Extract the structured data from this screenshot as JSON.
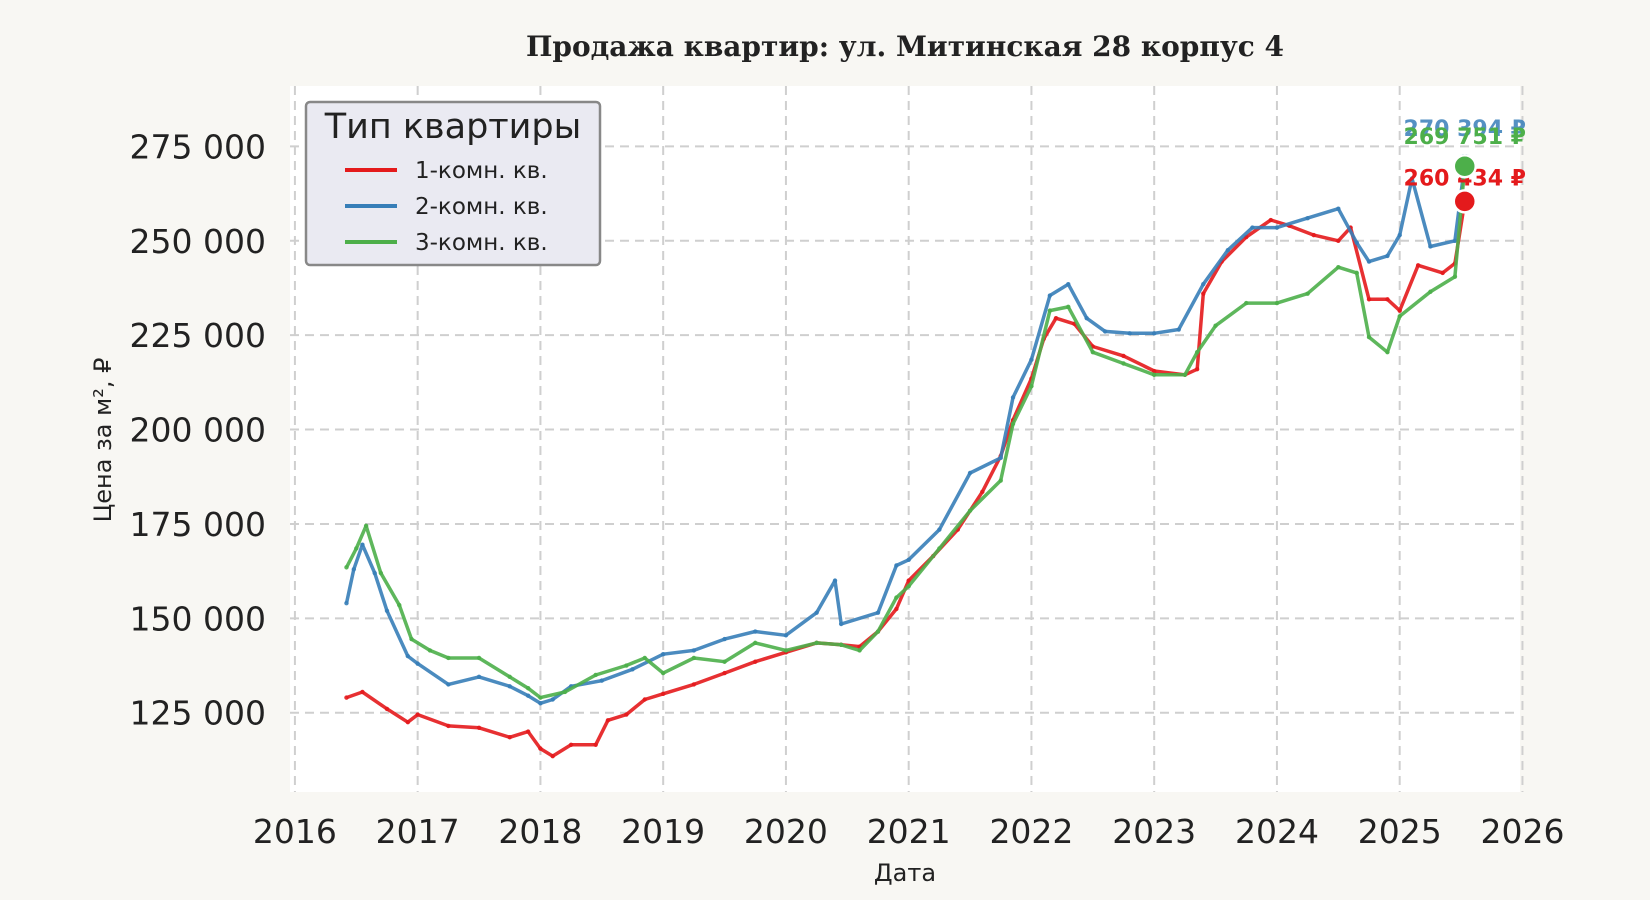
{
  "chart_data": {
    "type": "line",
    "title": "Продажа квартир: ул. Митинская 28 корпус 4",
    "xlabel": "Дата",
    "ylabel": "Цена за м², ₽",
    "xlim": [
      2015.96,
      2025.98
    ],
    "ylim": [
      104000,
      291000
    ],
    "x_ticks": [
      "2016",
      "2017",
      "2018",
      "2019",
      "2020",
      "2021",
      "2022",
      "2023",
      "2024",
      "2025",
      "2026"
    ],
    "y_ticks": [
      "125 000",
      "150 000",
      "175 000",
      "200 000",
      "225 000",
      "250 000",
      "275 000"
    ],
    "grid": true,
    "legend": {
      "title": "Тип квартиры",
      "position": "top-left"
    },
    "series": [
      {
        "name": "1-комн. кв.",
        "color": "#e41a1c",
        "end_label": "260 434 ₽",
        "end_value": 260434,
        "points": [
          [
            2016.42,
            129000
          ],
          [
            2016.55,
            130500
          ],
          [
            2016.75,
            126000
          ],
          [
            2016.92,
            122500
          ],
          [
            2017.0,
            124500
          ],
          [
            2017.25,
            121500
          ],
          [
            2017.5,
            121000
          ],
          [
            2017.75,
            118500
          ],
          [
            2017.9,
            120000
          ],
          [
            2018.0,
            115500
          ],
          [
            2018.1,
            113500
          ],
          [
            2018.25,
            116500
          ],
          [
            2018.45,
            116500
          ],
          [
            2018.55,
            123000
          ],
          [
            2018.7,
            124500
          ],
          [
            2018.85,
            128500
          ],
          [
            2019.0,
            130000
          ],
          [
            2019.25,
            132500
          ],
          [
            2019.5,
            135500
          ],
          [
            2019.75,
            138500
          ],
          [
            2020.0,
            141000
          ],
          [
            2020.25,
            143500
          ],
          [
            2020.45,
            143000
          ],
          [
            2020.6,
            142500
          ],
          [
            2020.75,
            146500
          ],
          [
            2020.9,
            152500
          ],
          [
            2021.0,
            160000
          ],
          [
            2021.2,
            166500
          ],
          [
            2021.4,
            173500
          ],
          [
            2021.6,
            183500
          ],
          [
            2021.75,
            193000
          ],
          [
            2021.85,
            202500
          ],
          [
            2022.0,
            213500
          ],
          [
            2022.1,
            224000
          ],
          [
            2022.2,
            229500
          ],
          [
            2022.35,
            228000
          ],
          [
            2022.5,
            222000
          ],
          [
            2022.75,
            219500
          ],
          [
            2023.0,
            215500
          ],
          [
            2023.25,
            214500
          ],
          [
            2023.35,
            216000
          ],
          [
            2023.4,
            236000
          ],
          [
            2023.55,
            244500
          ],
          [
            2023.75,
            251000
          ],
          [
            2023.95,
            255500
          ],
          [
            2024.1,
            254000
          ],
          [
            2024.3,
            251500
          ],
          [
            2024.5,
            250000
          ],
          [
            2024.6,
            253500
          ],
          [
            2024.75,
            234500
          ],
          [
            2024.9,
            234500
          ],
          [
            2025.0,
            231500
          ],
          [
            2025.15,
            243500
          ],
          [
            2025.35,
            241500
          ],
          [
            2025.45,
            244000
          ],
          [
            2025.53,
            260434
          ]
        ]
      },
      {
        "name": "2-комн. кв.",
        "color": "#377eb8",
        "end_label": "270 394 ₽",
        "end_value": 270394,
        "points": [
          [
            2016.42,
            154000
          ],
          [
            2016.48,
            163000
          ],
          [
            2016.55,
            169500
          ],
          [
            2016.65,
            162000
          ],
          [
            2016.75,
            152000
          ],
          [
            2016.92,
            140000
          ],
          [
            2017.0,
            138000
          ],
          [
            2017.25,
            132500
          ],
          [
            2017.5,
            134500
          ],
          [
            2017.75,
            132000
          ],
          [
            2017.9,
            129500
          ],
          [
            2018.0,
            127500
          ],
          [
            2018.1,
            128500
          ],
          [
            2018.25,
            132000
          ],
          [
            2018.5,
            133500
          ],
          [
            2018.75,
            136500
          ],
          [
            2019.0,
            140500
          ],
          [
            2019.25,
            141500
          ],
          [
            2019.5,
            144500
          ],
          [
            2019.75,
            146500
          ],
          [
            2020.0,
            145500
          ],
          [
            2020.25,
            151500
          ],
          [
            2020.4,
            160000
          ],
          [
            2020.45,
            148500
          ],
          [
            2020.75,
            151500
          ],
          [
            2020.9,
            164000
          ],
          [
            2021.0,
            165500
          ],
          [
            2021.25,
            173500
          ],
          [
            2021.5,
            188500
          ],
          [
            2021.75,
            192500
          ],
          [
            2021.85,
            208500
          ],
          [
            2022.0,
            218500
          ],
          [
            2022.15,
            235500
          ],
          [
            2022.3,
            238500
          ],
          [
            2022.45,
            229500
          ],
          [
            2022.6,
            226000
          ],
          [
            2022.8,
            225500
          ],
          [
            2023.0,
            225500
          ],
          [
            2023.2,
            226500
          ],
          [
            2023.4,
            238500
          ],
          [
            2023.6,
            247500
          ],
          [
            2023.8,
            253500
          ],
          [
            2024.0,
            253500
          ],
          [
            2024.25,
            256000
          ],
          [
            2024.5,
            258500
          ],
          [
            2024.65,
            249500
          ],
          [
            2024.75,
            244500
          ],
          [
            2024.9,
            246000
          ],
          [
            2025.0,
            251500
          ],
          [
            2025.1,
            266500
          ],
          [
            2025.25,
            248500
          ],
          [
            2025.45,
            250000
          ],
          [
            2025.53,
            270394
          ]
        ]
      },
      {
        "name": "3-комн. кв.",
        "color": "#4daf4a",
        "end_label": "269 751 ₽",
        "end_value": 269751,
        "points": [
          [
            2016.42,
            163500
          ],
          [
            2016.5,
            168500
          ],
          [
            2016.58,
            174500
          ],
          [
            2016.7,
            162000
          ],
          [
            2016.85,
            153500
          ],
          [
            2016.95,
            144500
          ],
          [
            2017.1,
            141500
          ],
          [
            2017.25,
            139500
          ],
          [
            2017.5,
            139500
          ],
          [
            2017.75,
            134500
          ],
          [
            2017.9,
            131500
          ],
          [
            2018.0,
            129000
          ],
          [
            2018.2,
            130500
          ],
          [
            2018.45,
            135000
          ],
          [
            2018.7,
            137500
          ],
          [
            2018.85,
            139500
          ],
          [
            2019.0,
            135500
          ],
          [
            2019.25,
            139500
          ],
          [
            2019.5,
            138500
          ],
          [
            2019.75,
            143500
          ],
          [
            2020.0,
            141500
          ],
          [
            2020.25,
            143500
          ],
          [
            2020.45,
            143000
          ],
          [
            2020.6,
            141500
          ],
          [
            2020.75,
            146500
          ],
          [
            2020.9,
            155500
          ],
          [
            2021.0,
            158500
          ],
          [
            2021.25,
            168500
          ],
          [
            2021.5,
            178500
          ],
          [
            2021.75,
            186500
          ],
          [
            2021.85,
            201500
          ],
          [
            2022.0,
            211500
          ],
          [
            2022.15,
            231500
          ],
          [
            2022.3,
            232500
          ],
          [
            2022.5,
            220500
          ],
          [
            2022.75,
            217500
          ],
          [
            2023.0,
            214500
          ],
          [
            2023.25,
            214500
          ],
          [
            2023.35,
            220500
          ],
          [
            2023.5,
            227500
          ],
          [
            2023.75,
            233500
          ],
          [
            2024.0,
            233500
          ],
          [
            2024.25,
            236000
          ],
          [
            2024.5,
            243000
          ],
          [
            2024.65,
            241500
          ],
          [
            2024.75,
            224500
          ],
          [
            2024.9,
            220500
          ],
          [
            2025.0,
            230000
          ],
          [
            2025.25,
            236500
          ],
          [
            2025.45,
            240500
          ],
          [
            2025.53,
            269751
          ]
        ]
      }
    ]
  }
}
